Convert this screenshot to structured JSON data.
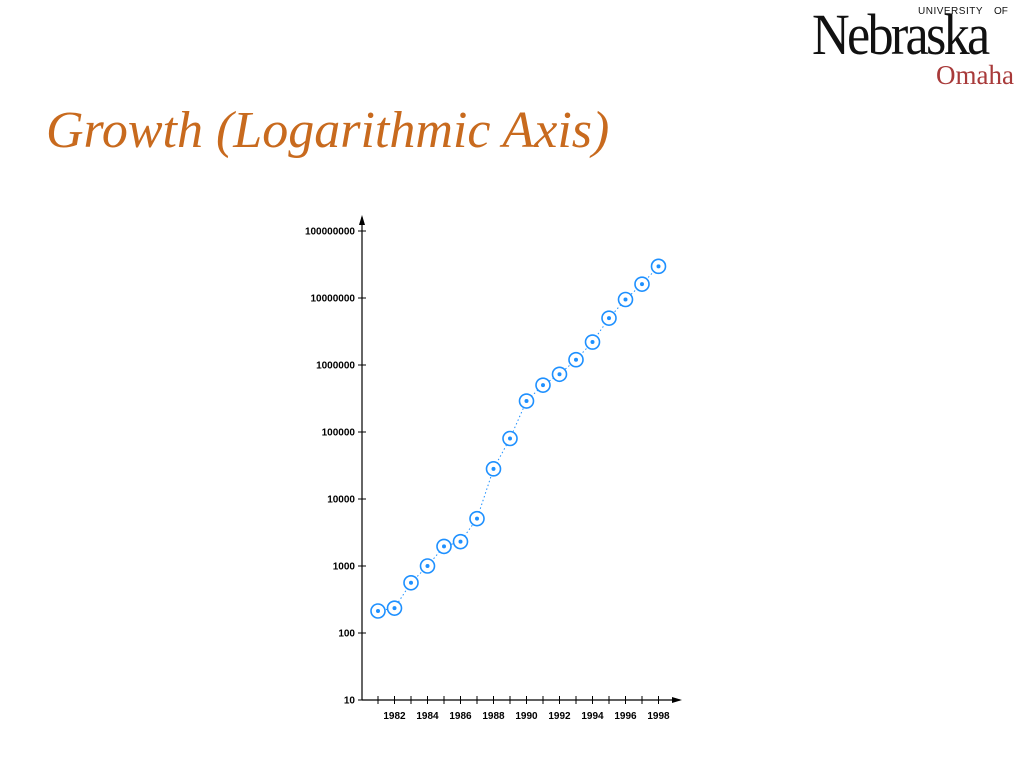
{
  "logo": {
    "wordmark": "Nebraska",
    "university_text": "UNIVERSITY",
    "of_text": "OF",
    "campus": "Omaha",
    "colors": {
      "wordmark": "#111111",
      "campus": "#a83a3a"
    }
  },
  "slide": {
    "title": "Growth (Logarithmic Axis)",
    "title_color": "#c86a1e"
  },
  "chart_data": {
    "type": "scatter",
    "title": "",
    "xlabel": "",
    "ylabel": "",
    "y_scale": "log",
    "ylim": [
      10,
      100000000
    ],
    "y_ticks": [
      10,
      100,
      1000,
      10000,
      100000,
      1000000,
      10000000,
      100000000
    ],
    "y_tick_labels": [
      "10",
      "100",
      "1000",
      "10000",
      "100000",
      "1000000",
      "10000000",
      "100000000"
    ],
    "x_ticks": [
      1981,
      1982,
      1983,
      1984,
      1985,
      1986,
      1987,
      1988,
      1989,
      1990,
      1991,
      1992,
      1993,
      1994,
      1995,
      1996,
      1997,
      1998
    ],
    "x_tick_labels": [
      "1982",
      "1984",
      "1986",
      "1988",
      "1990",
      "1992",
      "1994",
      "1996",
      "1998"
    ],
    "x_labeled_years": [
      1982,
      1984,
      1986,
      1988,
      1990,
      1992,
      1994,
      1996,
      1998
    ],
    "grid": false,
    "connecting_line": "dotted",
    "marker": "circled-dot",
    "marker_color": "#1e90ff",
    "series": [
      {
        "x": [
          1981,
          1982,
          1983,
          1984,
          1985,
          1986,
          1987,
          1988,
          1989,
          1990,
          1991,
          1992,
          1993,
          1994,
          1995,
          1996,
          1997,
          1998
        ],
        "y": [
          213,
          235,
          562,
          1000,
          1961,
          2308,
          5089,
          28174,
          80000,
          290000,
          500000,
          727000,
          1200000,
          2200000,
          5000000,
          9500000,
          16100000,
          29700000
        ]
      }
    ]
  }
}
